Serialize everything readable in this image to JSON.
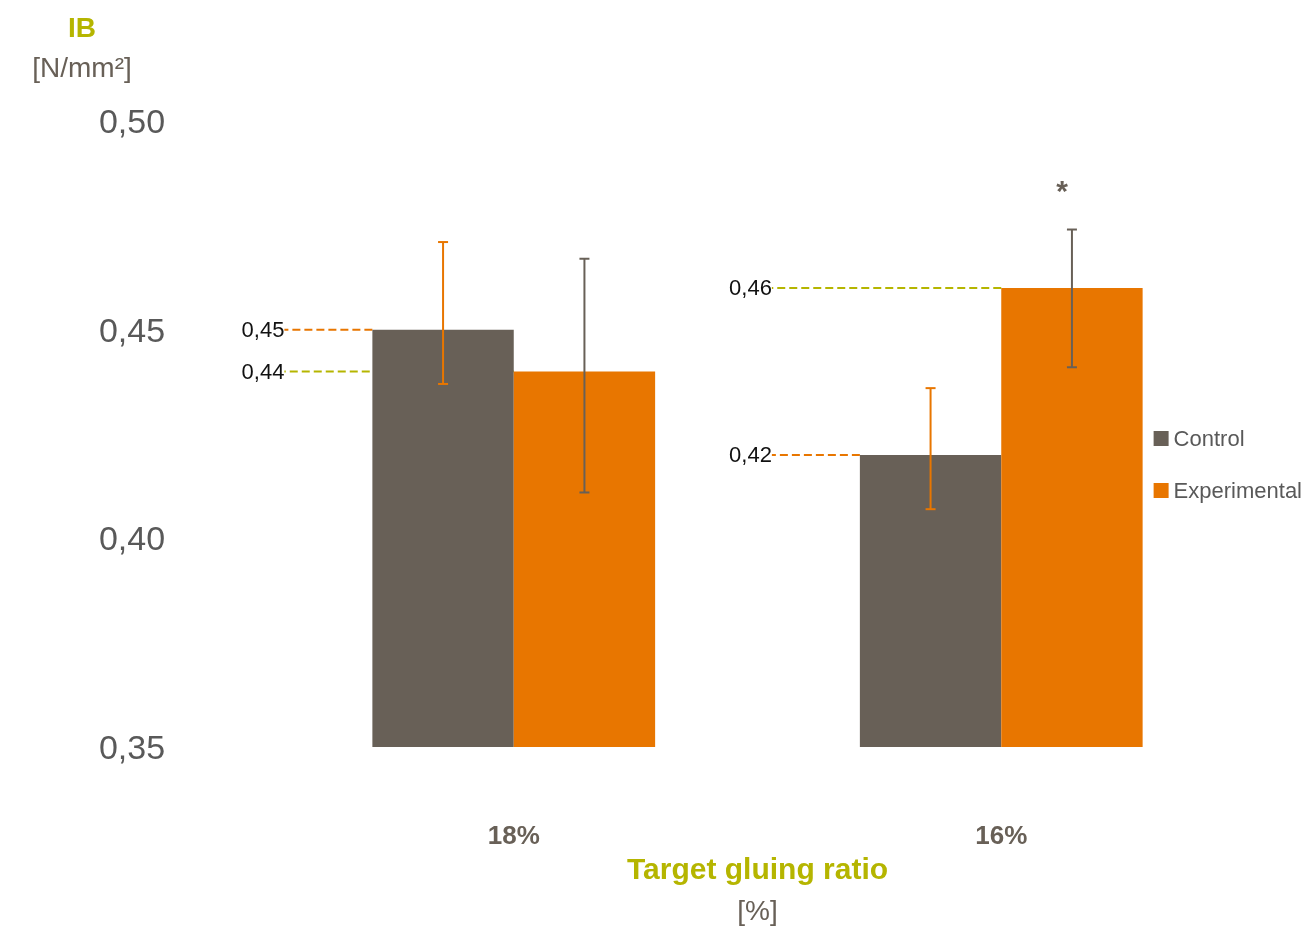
{
  "chart_data": {
    "type": "bar",
    "ylabel": "IB [N/mm²]",
    "xlabel": "Target gluing ratio [%]",
    "categories": [
      "18%",
      "16%"
    ],
    "series": [
      {
        "name": "Control",
        "color": "#686057",
        "values": [
          0.45,
          0.42
        ],
        "errors": [
          [
            0.437,
            0.471
          ],
          [
            0.407,
            0.436
          ]
        ],
        "value_labels": [
          "0,45",
          "0,42"
        ]
      },
      {
        "name": "Experimental",
        "color": "#e87600",
        "values": [
          0.44,
          0.46
        ],
        "errors": [
          [
            0.411,
            0.467
          ],
          [
            0.441,
            0.474
          ]
        ],
        "value_labels": [
          "0,44",
          "0,46"
        ]
      }
    ],
    "ylim": [
      0.35,
      0.5
    ],
    "yticks": [
      {
        "value": 0.35,
        "label": "0,35"
      },
      {
        "value": 0.4,
        "label": "0,40"
      },
      {
        "value": 0.45,
        "label": "0,45"
      },
      {
        "value": 0.5,
        "label": "0,50"
      }
    ],
    "annotations": [
      "*"
    ],
    "legend": "right"
  }
}
